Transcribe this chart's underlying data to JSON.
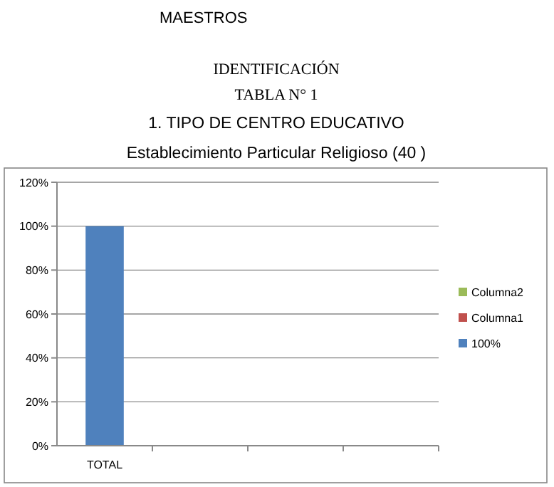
{
  "chart_data": {
    "type": "bar",
    "title": "1. TIPO DE CENTRO EDUCATIVO",
    "subtitle": "Establecimiento Particular Religioso (40 )",
    "annotations": [
      "MAESTROS",
      "IDENTIFICACIÓN",
      "TABLA N° 1"
    ],
    "categories": [
      "TOTAL",
      null,
      null,
      null
    ],
    "series": [
      {
        "name": "100%",
        "color": "#4f81bd",
        "values": [
          100,
          null,
          null,
          null
        ]
      },
      {
        "name": "Columna1",
        "color": "#c0504d",
        "values": [
          null,
          null,
          null,
          null
        ]
      },
      {
        "name": "Columna2",
        "color": "#9bbb59",
        "values": [
          null,
          null,
          null,
          null
        ]
      }
    ],
    "ylim": [
      0,
      120
    ],
    "yticks": [
      {
        "value": 0,
        "label": "0%"
      },
      {
        "value": 20,
        "label": "20%"
      },
      {
        "value": 40,
        "label": "40%"
      },
      {
        "value": 60,
        "label": "60%"
      },
      {
        "value": 80,
        "label": "80%"
      },
      {
        "value": 100,
        "label": "100%"
      },
      {
        "value": 120,
        "label": "120%"
      }
    ],
    "grid": "y",
    "legend": "right"
  }
}
